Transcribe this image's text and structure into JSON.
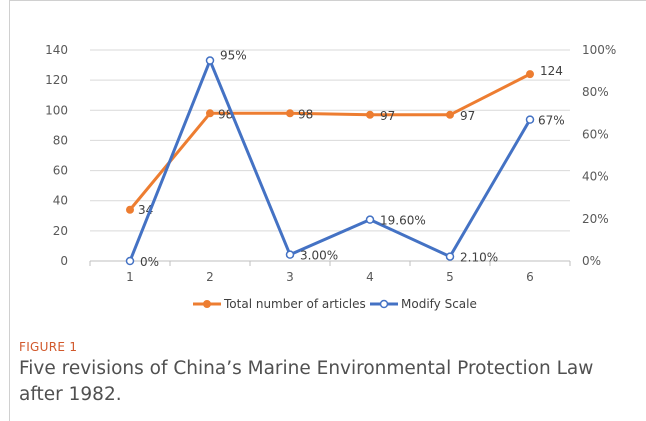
{
  "figure": {
    "label": "FIGURE 1",
    "caption": "Five revisions of China’s Marine Environmental Protection Law after 1982."
  },
  "chart_data": {
    "type": "line",
    "categories": [
      "1",
      "2",
      "3",
      "4",
      "5",
      "6"
    ],
    "y_left": {
      "ticks": [
        "0",
        "20",
        "40",
        "60",
        "80",
        "100",
        "120",
        "140"
      ],
      "ylim": [
        0,
        140
      ]
    },
    "y_right": {
      "ticks": [
        "0%",
        "20%",
        "40%",
        "60%",
        "80%",
        "100%"
      ],
      "ylim": [
        0,
        100
      ]
    },
    "series": [
      {
        "name": "Total number of articles",
        "axis": "left",
        "color": "#ed7d31",
        "marker": "filled-circle",
        "values": [
          34,
          98,
          98,
          97,
          97,
          124
        ],
        "labels": [
          "34",
          "98",
          "98",
          "97",
          "97",
          "124"
        ]
      },
      {
        "name": "Modify Scale",
        "axis": "right",
        "color": "#4472c4",
        "marker": "open-circle",
        "values": [
          0,
          95,
          3.0,
          19.6,
          2.1,
          67
        ],
        "labels": [
          "0%",
          "95%",
          "3.00%",
          "19.60%",
          "2.10%",
          "67%"
        ]
      }
    ],
    "grid": true,
    "legend_position": "bottom"
  }
}
